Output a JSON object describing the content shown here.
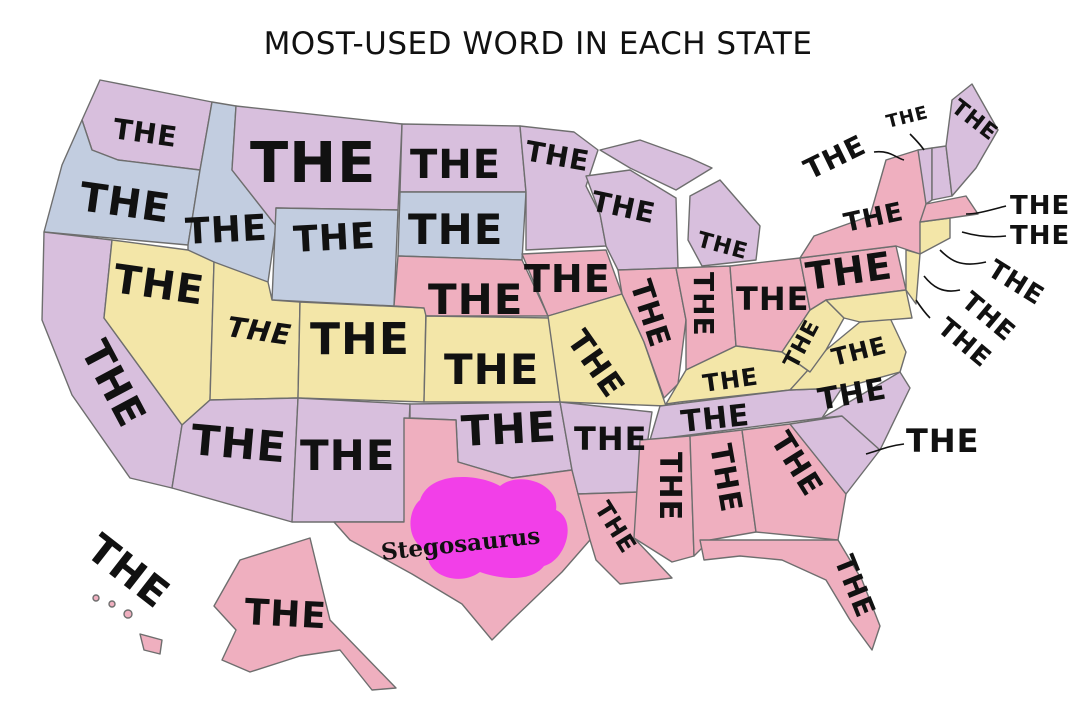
{
  "title": "MOST-USED WORD IN EACH STATE",
  "word": "THE",
  "highlight_word": "Stegosaurus",
  "colors": {
    "purple": "#d8bfdd",
    "blue": "#c2cde0",
    "yellow": "#f3e6a8",
    "pink": "#efafbf",
    "magenta": "#f23fe8",
    "border": "#6e6e6e",
    "ink": "#111111"
  }
}
